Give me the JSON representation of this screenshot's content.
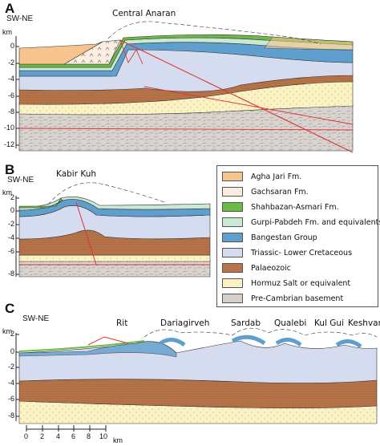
{
  "panels": [
    {
      "letter": "A",
      "orientation": "SW-NE",
      "title": "Central Anaran",
      "unit": "km",
      "ticks": [
        "0",
        "-2",
        "-4",
        "-6",
        "-8",
        "-10",
        "-12"
      ]
    },
    {
      "letter": "B",
      "orientation": "SW-NE",
      "title": "Kabir Kuh",
      "unit": "km",
      "ticks": [
        "2",
        "0",
        "-2",
        "-4",
        "-6",
        "-8"
      ]
    },
    {
      "letter": "C",
      "orientation": "SW-NE",
      "unit": "km",
      "ticks": [
        "2",
        "0",
        "-2",
        "-4",
        "-6",
        "-8"
      ],
      "places": [
        "Rit",
        "Dariagirveh",
        "Sardab",
        "Qualebi",
        "Kul Gui",
        "Keshvar"
      ]
    }
  ],
  "legend": [
    {
      "label": "Agha Jari Fm.",
      "color": "#f6c48c"
    },
    {
      "label": "Gachsaran Fm.",
      "color": "#fbeee0"
    },
    {
      "label": "Shahbazan-Asmari Fm.",
      "color": "#6cbb46"
    },
    {
      "label": "Gurpi-Pabdeh Fm. and equivalents",
      "color": "#cbe8d4"
    },
    {
      "label": "Bangestan Group",
      "color": "#5f9fce"
    },
    {
      "label": "Triassic- Lower Cretaceous",
      "color": "#d6dcf0"
    },
    {
      "label": "Palaeozoic",
      "color": "#b8754a"
    },
    {
      "label": "Hormuz Salt or equivalent",
      "color": "#fbf3c4"
    },
    {
      "label": "Pre-Cambrian basement",
      "color": "#d6d0cc"
    }
  ],
  "scalebar": {
    "ticks": [
      "0",
      "2",
      "4",
      "6",
      "8",
      "10"
    ],
    "unit": "km"
  }
}
